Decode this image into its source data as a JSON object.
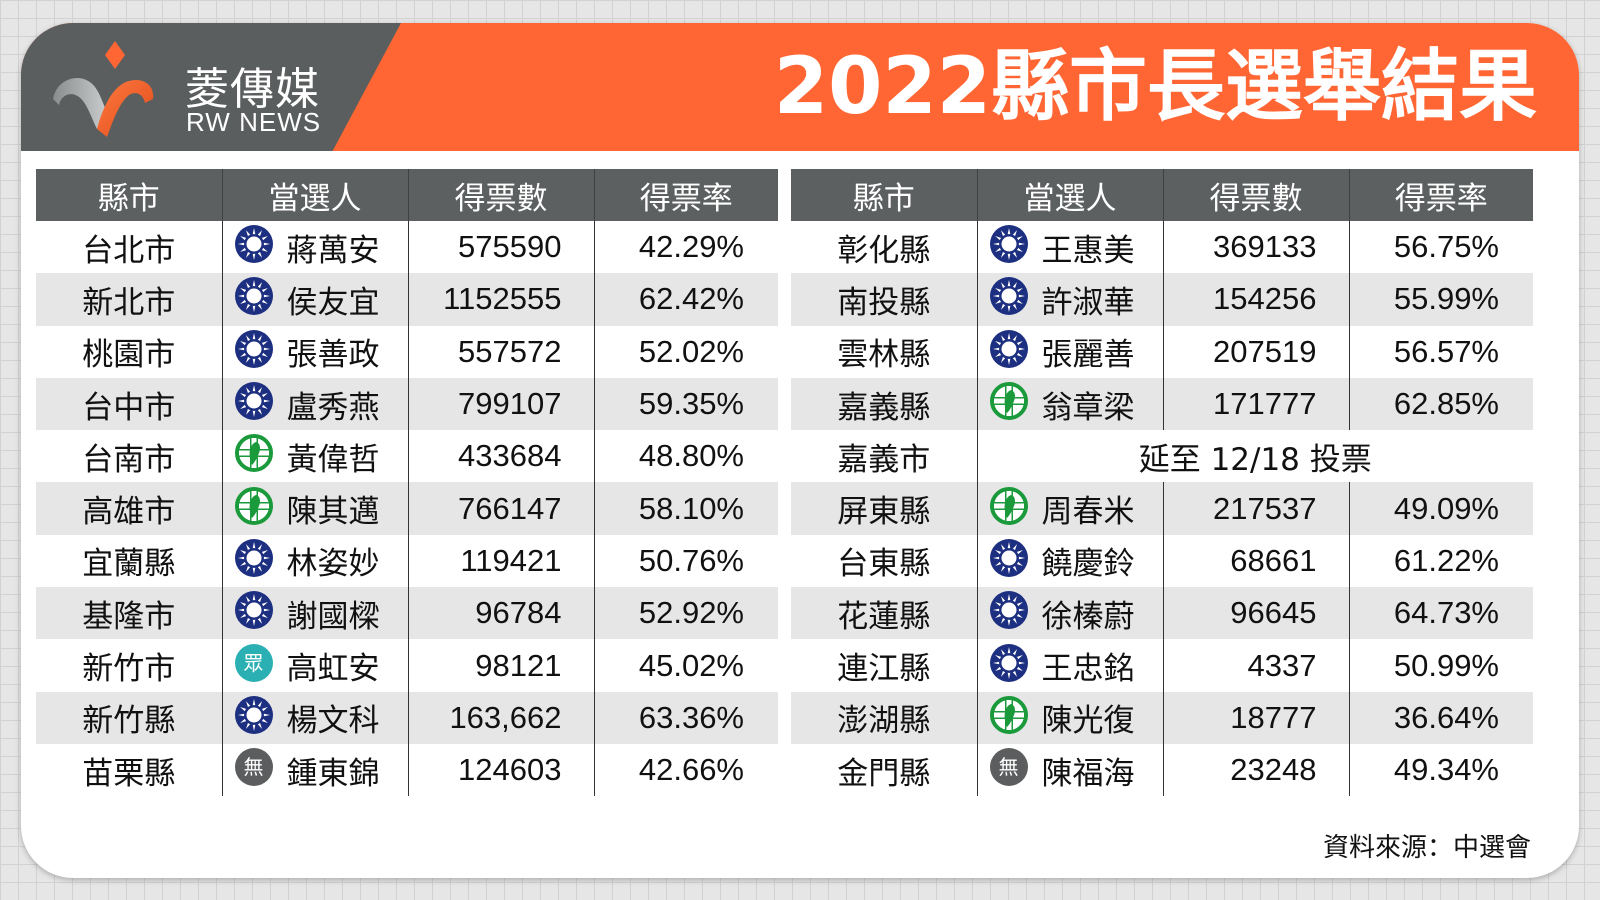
{
  "logo": {
    "chinese": "菱傳媒",
    "english": "RW NEWS"
  },
  "title": "2022縣市長選舉結果",
  "colors": {
    "brand_orange": "#ff6633",
    "banner_gray": "#5a5e5e",
    "header_gray": "#5c6061",
    "row_alt": "#e6e6e6",
    "kmt_blue": "#1d2f80",
    "dpp_green": "#1b9a3c",
    "tpp_teal": "#2ab0b3",
    "independent_gray": "#5b5d5e",
    "note_red": "#cc1a1a"
  },
  "party_icons": {
    "kmt": "kmt-sun-emblem-icon",
    "dpp": "dpp-taiwan-cross-icon",
    "tpp": "tpp-眾-icon",
    "ind": "independent-無-icon",
    "tpp_glyph": "眾",
    "ind_glyph": "無"
  },
  "columns": [
    "縣市",
    "當選人",
    "得票數",
    "得票率"
  ],
  "left_table": {
    "rows": [
      {
        "city": "台北市",
        "party": "kmt",
        "name": "蔣萬安",
        "votes": "575590",
        "pct": "42.29%"
      },
      {
        "city": "新北市",
        "party": "kmt",
        "name": "侯友宜",
        "votes": "1152555",
        "pct": "62.42%"
      },
      {
        "city": "桃園市",
        "party": "kmt",
        "name": "張善政",
        "votes": "557572",
        "pct": "52.02%"
      },
      {
        "city": "台中市",
        "party": "kmt",
        "name": "盧秀燕",
        "votes": "799107",
        "pct": "59.35%"
      },
      {
        "city": "台南市",
        "party": "dpp",
        "name": "黃偉哲",
        "votes": "433684",
        "pct": "48.80%"
      },
      {
        "city": "高雄市",
        "party": "dpp",
        "name": "陳其邁",
        "votes": "766147",
        "pct": "58.10%"
      },
      {
        "city": "宜蘭縣",
        "party": "kmt",
        "name": "林姿妙",
        "votes": "119421",
        "pct": "50.76%"
      },
      {
        "city": "基隆市",
        "party": "kmt",
        "name": "謝國樑",
        "votes": "96784",
        "pct": "52.92%"
      },
      {
        "city": "新竹市",
        "party": "tpp",
        "name": "高虹安",
        "votes": "98121",
        "pct": "45.02%"
      },
      {
        "city": "新竹縣",
        "party": "kmt",
        "name": "楊文科",
        "votes": "163,662",
        "pct": "63.36%"
      },
      {
        "city": "苗栗縣",
        "party": "ind",
        "name": "鍾東錦",
        "votes": "124603",
        "pct": "42.66%"
      }
    ]
  },
  "right_table": {
    "rows": [
      {
        "city": "彰化縣",
        "party": "kmt",
        "name": "王惠美",
        "votes": "369133",
        "pct": "56.75%"
      },
      {
        "city": "南投縣",
        "party": "kmt",
        "name": "許淑華",
        "votes": "154256",
        "pct": "55.99%"
      },
      {
        "city": "雲林縣",
        "party": "kmt",
        "name": "張麗善",
        "votes": "207519",
        "pct": "56.57%"
      },
      {
        "city": "嘉義縣",
        "party": "dpp",
        "name": "翁章梁",
        "votes": "171777",
        "pct": "62.85%"
      },
      {
        "city": "嘉義市",
        "note": "延至 12/18 投票"
      },
      {
        "city": "屏東縣",
        "party": "dpp",
        "name": "周春米",
        "votes": "217537",
        "pct": "49.09%"
      },
      {
        "city": "台東縣",
        "party": "kmt",
        "name": "饒慶鈴",
        "votes": "68661",
        "pct": "61.22%"
      },
      {
        "city": "花蓮縣",
        "party": "kmt",
        "name": "徐榛蔚",
        "votes": "96645",
        "pct": "64.73%"
      },
      {
        "city": "連江縣",
        "party": "kmt",
        "name": "王忠銘",
        "votes": "4337",
        "pct": "50.99%"
      },
      {
        "city": "澎湖縣",
        "party": "dpp",
        "name": "陳光復",
        "votes": "18777",
        "pct": "36.64%"
      },
      {
        "city": "金門縣",
        "party": "ind",
        "name": "陳福海",
        "votes": "23248",
        "pct": "49.34%"
      }
    ]
  },
  "source": "資料來源：中選會"
}
